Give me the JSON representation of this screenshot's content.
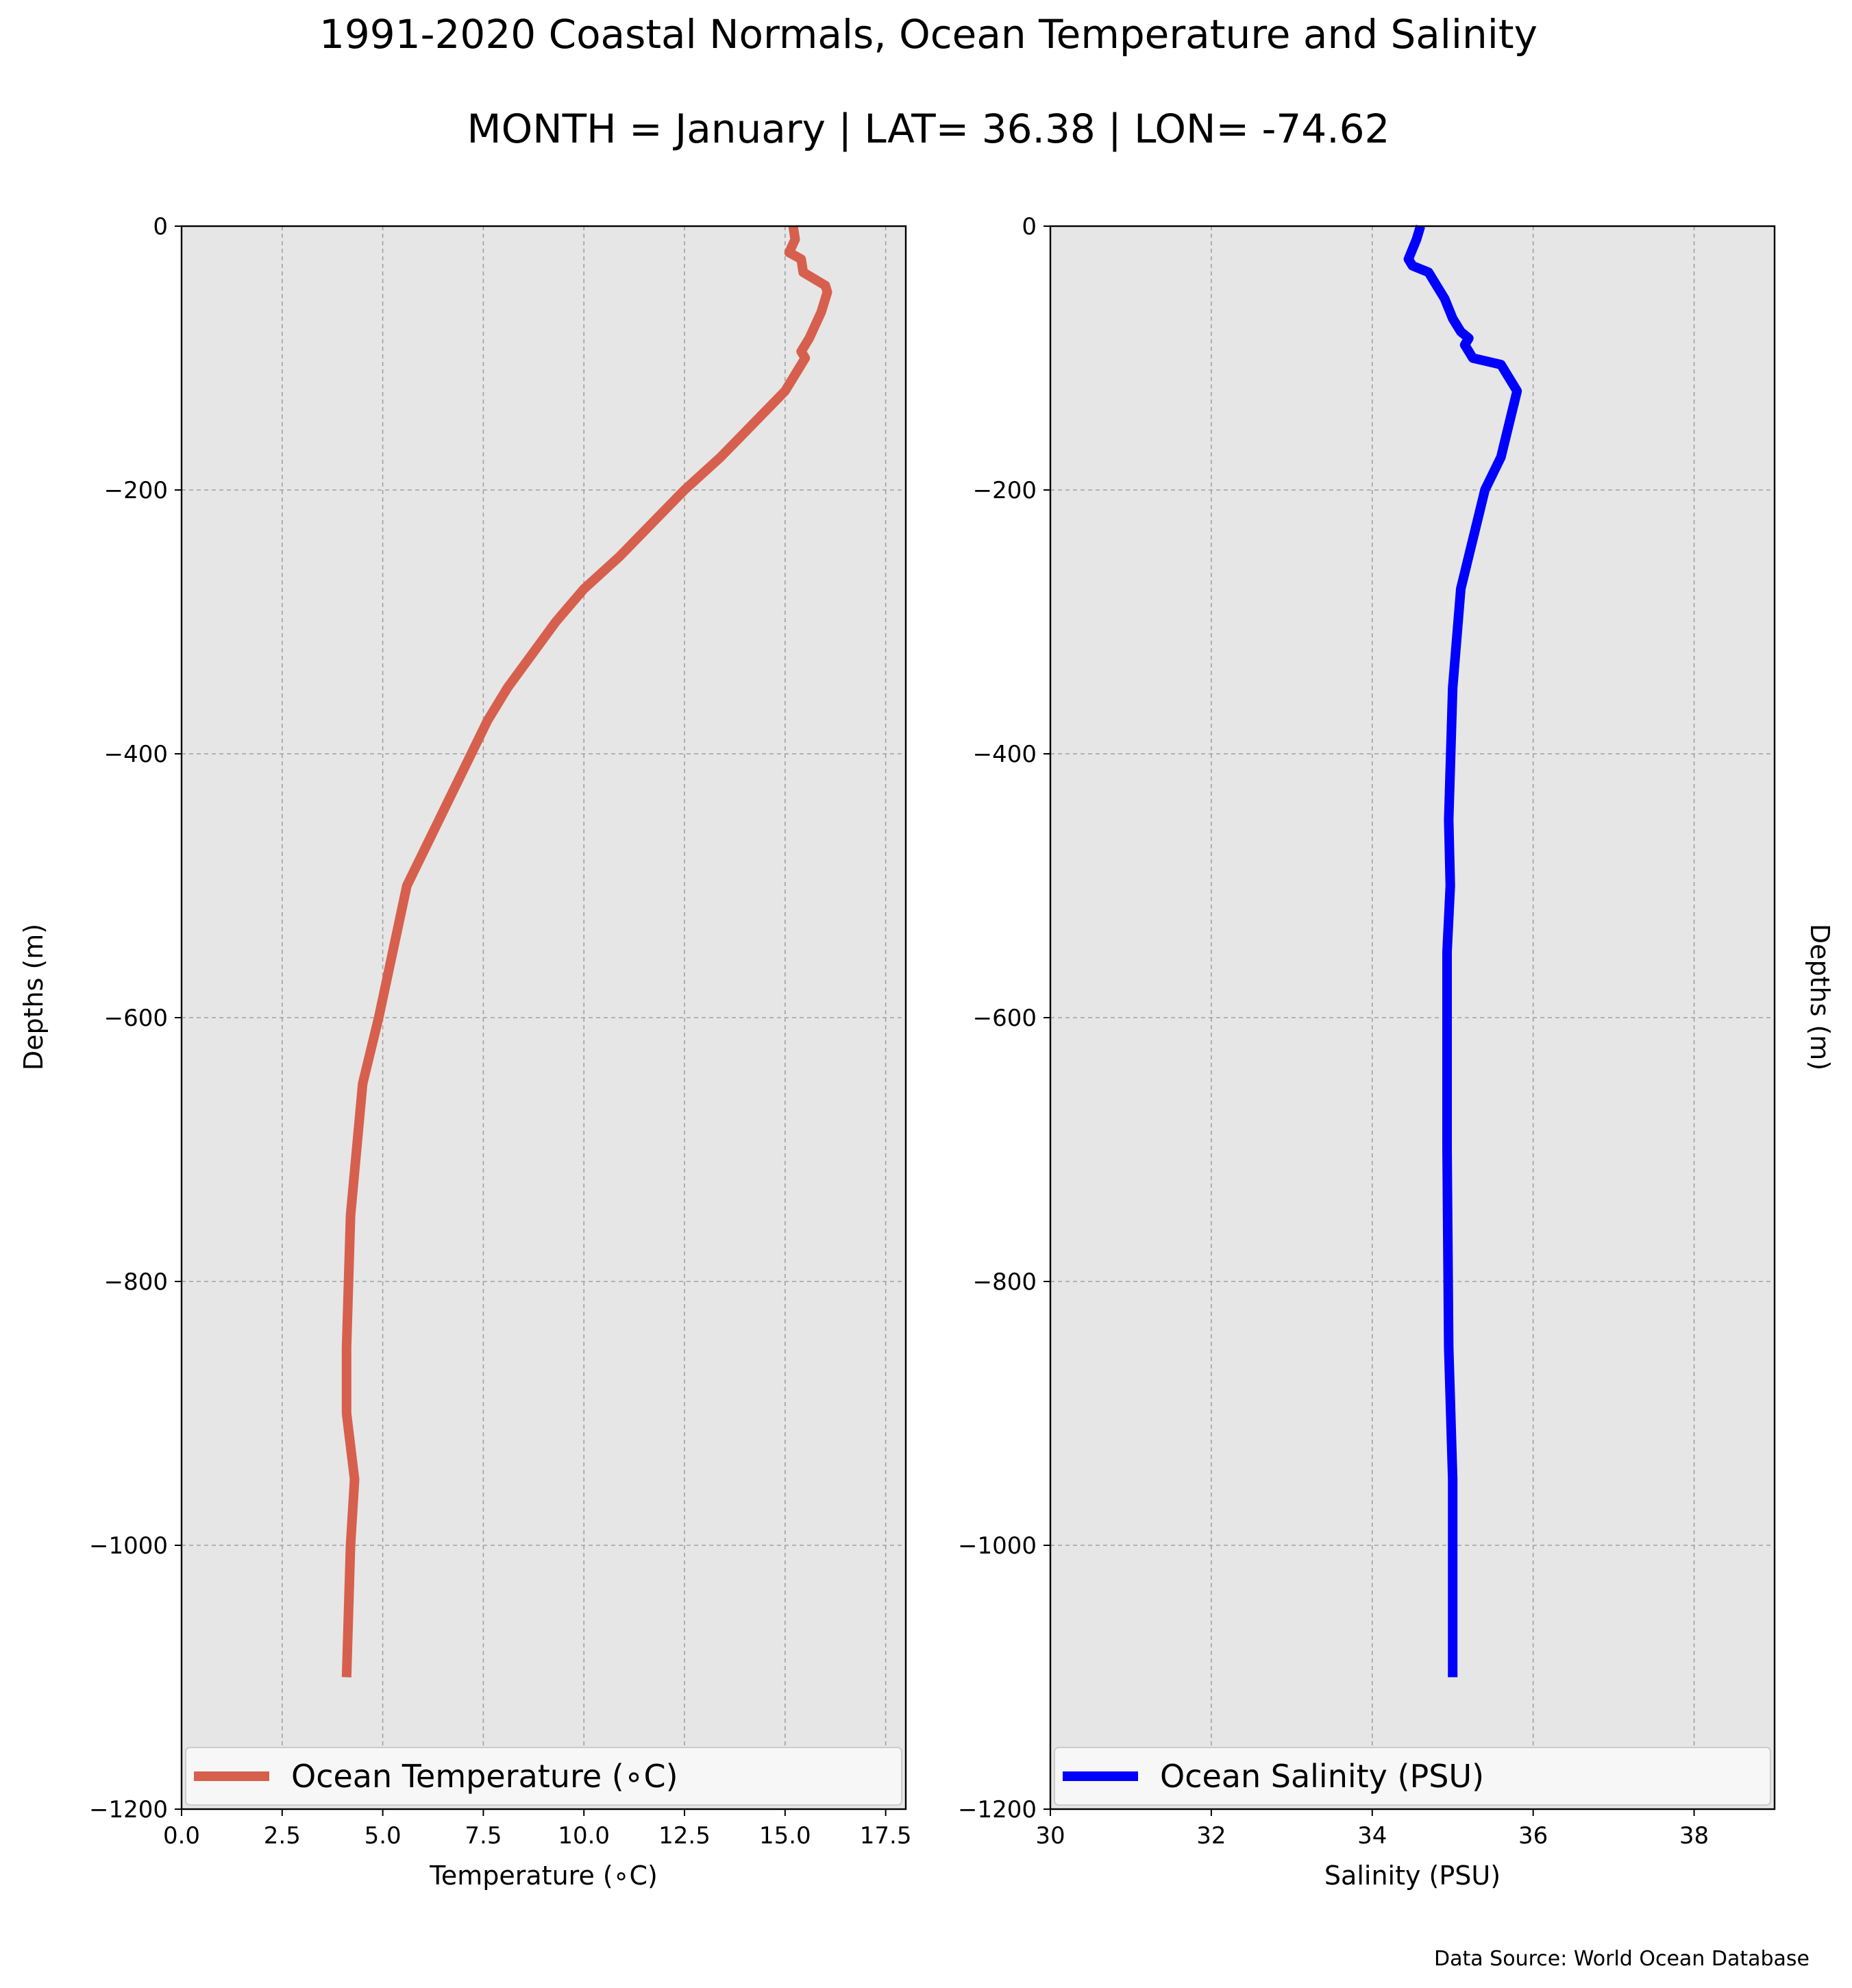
{
  "figure": {
    "title_line1": "1991-2020 Coastal Normals, Ocean Temperature and Salinity",
    "title_line2": "MONTH = January | LAT= 36.38 | LON= -74.62",
    "source_note": "Data Source: World Ocean Database",
    "background": "#ffffff",
    "plot_background": "#e6e6e6",
    "grid_color": "#a0a0a0"
  },
  "chart_data": [
    {
      "type": "line",
      "orientation": "depth-profile",
      "xlabel": "Temperature (∘C)",
      "ylabel": "Depths (m)",
      "xlim": [
        0,
        18
      ],
      "ylim": [
        -1200,
        0
      ],
      "xticks": [
        0.0,
        2.5,
        5.0,
        7.5,
        10.0,
        12.5,
        15.0,
        17.5
      ],
      "xtick_labels": [
        "0.0",
        "2.5",
        "5.0",
        "7.5",
        "10.0",
        "12.5",
        "15.0",
        "17.5"
      ],
      "yticks": [
        0,
        -200,
        -400,
        -600,
        -800,
        -1000,
        -1200
      ],
      "ytick_labels": [
        "0",
        "−200",
        "−400",
        "−600",
        "−800",
        "−1000",
        "−1200"
      ],
      "grid": true,
      "legend_position": "bottom",
      "series": [
        {
          "name": "Ocean Temperature (∘C)",
          "color": "#d6604d",
          "x": [
            15.2,
            15.25,
            15.1,
            15.4,
            15.45,
            16.0,
            16.05,
            15.9,
            15.6,
            15.4,
            15.5,
            15.0,
            14.2,
            13.4,
            12.5,
            11.7,
            10.9,
            10.0,
            9.3,
            8.1,
            7.6,
            6.4,
            5.6,
            4.9,
            4.5,
            4.2,
            4.1,
            4.1,
            4.3,
            4.2,
            4.1
          ],
          "depth": [
            0,
            -10,
            -20,
            -25,
            -35,
            -45,
            -50,
            -65,
            -85,
            -95,
            -100,
            -125,
            -150,
            -175,
            -200,
            -225,
            -250,
            -275,
            -300,
            -350,
            -375,
            -450,
            -500,
            -600,
            -650,
            -750,
            -850,
            -900,
            -950,
            -1000,
            -1100
          ]
        }
      ]
    },
    {
      "type": "line",
      "orientation": "depth-profile",
      "xlabel": "Salinity (PSU)",
      "ylabel": "Depths (m)",
      "xlim": [
        30,
        39
      ],
      "ylim": [
        -1200,
        0
      ],
      "xticks": [
        30,
        32,
        34,
        36,
        38
      ],
      "xtick_labels": [
        "30",
        "32",
        "34",
        "36",
        "38"
      ],
      "yticks": [
        0,
        -200,
        -400,
        -600,
        -800,
        -1000,
        -1200
      ],
      "ytick_labels": [
        "0",
        "−200",
        "−400",
        "−600",
        "−800",
        "−1000",
        "−1200"
      ],
      "grid": true,
      "legend_position": "bottom",
      "series": [
        {
          "name": "Ocean Salinity (PSU)",
          "color": "#0000ff",
          "x": [
            34.6,
            34.55,
            34.45,
            34.5,
            34.7,
            34.8,
            34.9,
            35.0,
            35.1,
            35.2,
            35.15,
            35.25,
            35.6,
            35.8,
            35.7,
            35.6,
            35.4,
            35.3,
            35.2,
            35.1,
            35.0,
            34.95,
            34.97,
            34.93,
            34.93,
            34.95,
            35.0,
            35.0,
            35.0
          ],
          "depth": [
            0,
            -10,
            -25,
            -30,
            -35,
            -45,
            -55,
            -70,
            -80,
            -85,
            -90,
            -100,
            -105,
            -125,
            -150,
            -175,
            -200,
            -225,
            -250,
            -275,
            -350,
            -450,
            -500,
            -550,
            -700,
            -850,
            -950,
            -1000,
            -1100
          ]
        }
      ]
    }
  ]
}
